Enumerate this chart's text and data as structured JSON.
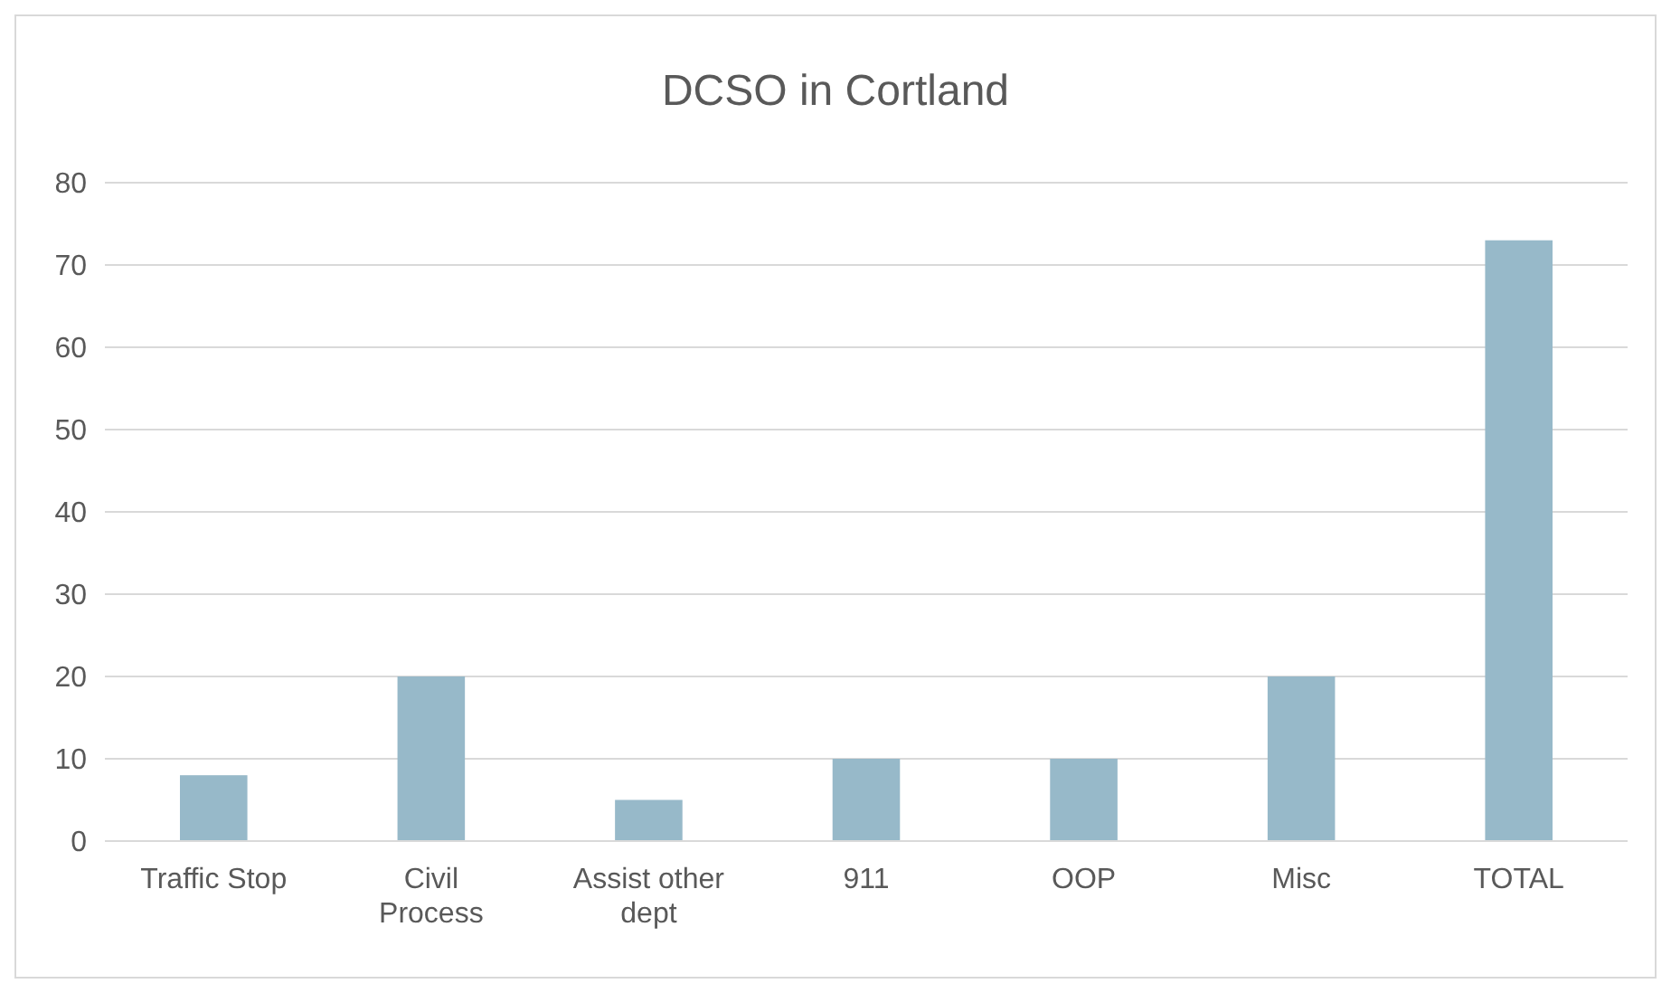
{
  "chart_data": {
    "type": "bar",
    "title": "DCSO in Cortland",
    "categories": [
      "Traffic Stop",
      "Civil Process",
      "Assist other dept",
      "911",
      "OOP",
      "Misc",
      "TOTAL"
    ],
    "values": [
      8,
      20,
      5,
      10,
      10,
      20,
      73
    ],
    "color": "#97b9c9",
    "ylim": [
      0,
      80
    ],
    "yticks": [
      0,
      10,
      20,
      30,
      40,
      50,
      60,
      70,
      80
    ],
    "grid": "y"
  }
}
